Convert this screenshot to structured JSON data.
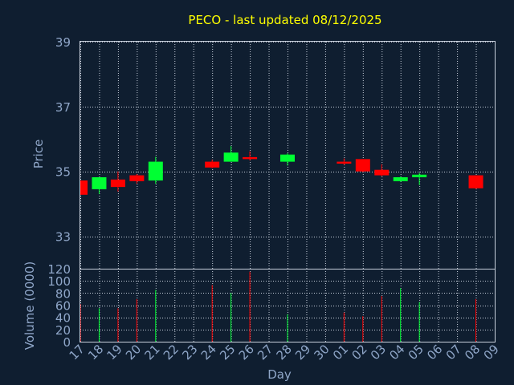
{
  "chart_data": {
    "type": "candlestick",
    "title": "PECO - last updated 08/12/2025",
    "xlabel": "Day",
    "ylabel": "Price",
    "volume_label": "Volume (0000)",
    "grid": true,
    "colors": {
      "background": "#0f1e30",
      "up": "#00ff33",
      "down": "#ff0000",
      "title": "#ffff00",
      "text": "#8fa6c8",
      "grid": "#c8d0dc"
    },
    "price_axis": {
      "min": 32,
      "max": 39,
      "ticks": [
        33,
        35,
        37,
        39
      ]
    },
    "volume_axis": {
      "min": 0,
      "max": 120,
      "ticks": [
        0,
        20,
        40,
        60,
        80,
        100,
        120
      ]
    },
    "day_labels": [
      "17",
      "18",
      "19",
      "20",
      "21",
      "22",
      "23",
      "24",
      "25",
      "26",
      "27",
      "28",
      "29",
      "30",
      "01",
      "02",
      "03",
      "04",
      "05",
      "06",
      "07",
      "08",
      "09"
    ],
    "candles": [
      {
        "day": "17",
        "open": 34.72,
        "close": 34.28,
        "high": 34.72,
        "low": 34.28,
        "volume": 62
      },
      {
        "day": "18",
        "open": 34.45,
        "close": 34.82,
        "high": 34.82,
        "low": 34.3,
        "volume": 55
      },
      {
        "day": "19",
        "open": 34.75,
        "close": 34.52,
        "high": 35.0,
        "low": 34.38,
        "volume": 55
      },
      {
        "day": "20",
        "open": 34.88,
        "close": 34.7,
        "high": 34.92,
        "low": 34.62,
        "volume": 70
      },
      {
        "day": "21",
        "open": 34.72,
        "close": 35.3,
        "high": 35.45,
        "low": 34.62,
        "volume": 85
      },
      {
        "day": "24",
        "open": 35.3,
        "close": 35.12,
        "high": 35.36,
        "low": 35.1,
        "volume": 93
      },
      {
        "day": "25",
        "open": 35.3,
        "close": 35.58,
        "high": 35.78,
        "low": 35.3,
        "volume": 80
      },
      {
        "day": "26",
        "open": 35.44,
        "close": 35.38,
        "high": 35.62,
        "low": 35.34,
        "volume": 115
      },
      {
        "day": "28",
        "open": 35.3,
        "close": 35.52,
        "high": 35.56,
        "low": 35.18,
        "volume": 45
      },
      {
        "day": "01",
        "open": 35.3,
        "close": 35.24,
        "high": 35.4,
        "low": 35.2,
        "volume": 48
      },
      {
        "day": "02",
        "open": 35.38,
        "close": 35.0,
        "high": 35.38,
        "low": 34.98,
        "volume": 42
      },
      {
        "day": "03",
        "open": 35.05,
        "close": 34.88,
        "high": 35.22,
        "low": 34.85,
        "volume": 75
      },
      {
        "day": "04",
        "open": 34.7,
        "close": 34.82,
        "high": 34.84,
        "low": 34.68,
        "volume": 88
      },
      {
        "day": "05",
        "open": 34.82,
        "close": 34.9,
        "high": 34.95,
        "low": 34.58,
        "volume": 65
      },
      {
        "day": "08",
        "open": 34.88,
        "close": 34.48,
        "high": 34.88,
        "low": 34.46,
        "volume": 70
      }
    ]
  }
}
